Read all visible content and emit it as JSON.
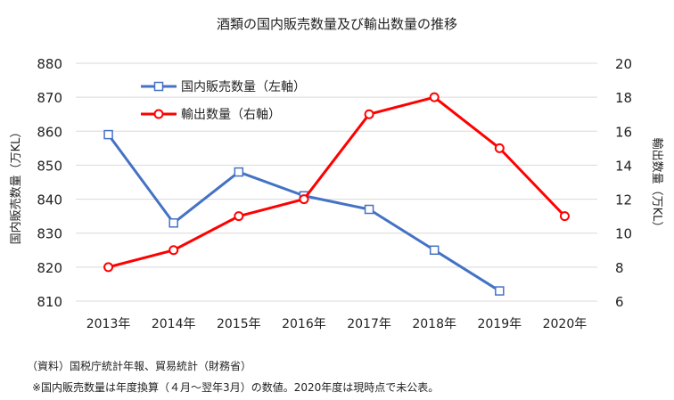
{
  "chart_data": {
    "type": "line",
    "title": "酒類の国内販売数量及び輸出数量の推移",
    "categories": [
      "2013年",
      "2014年",
      "2015年",
      "2016年",
      "2017年",
      "2018年",
      "2019年",
      "2020年"
    ],
    "ylabel_left": "国内販売数量（万KL）",
    "ylabel_right": "輸出数量（万KL）",
    "ylim_left": [
      810,
      880
    ],
    "ylim_right": [
      6,
      20
    ],
    "yticks_left": [
      "880",
      "870",
      "860",
      "850",
      "840",
      "830",
      "820",
      "810"
    ],
    "yticks_right": [
      "20",
      "18",
      "16",
      "14",
      "12",
      "10",
      "8",
      "6"
    ],
    "grid": true,
    "legend_position": "top-left",
    "series": [
      {
        "name": "国内販売数量（左軸）",
        "axis": "left",
        "color": "#4472C4",
        "marker": "square",
        "values": [
          859,
          833,
          848,
          841,
          837,
          825,
          813,
          null
        ]
      },
      {
        "name": "輸出数量（右軸）",
        "axis": "right",
        "color": "#FF0000",
        "marker": "circle",
        "values": [
          8,
          9,
          11,
          12,
          17,
          18,
          15,
          11
        ]
      }
    ]
  },
  "notes": {
    "source": "（資料）国税庁統計年報、貿易統計（財務省）",
    "footnote": "※国内販売数量は年度換算（４月～翌年3月）の数値。2020年度は現時点で未公表。"
  }
}
